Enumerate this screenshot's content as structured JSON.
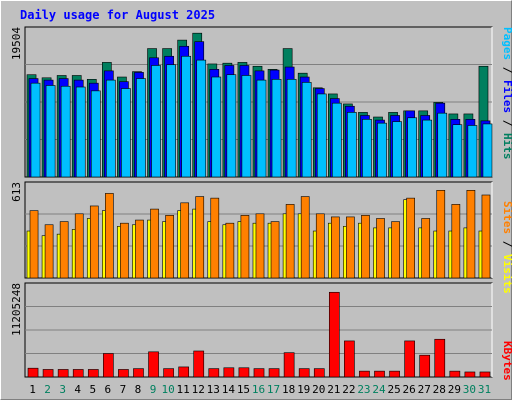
{
  "chart_data": [
    {
      "type": "bar",
      "title": "Daily usage for August 2025",
      "panel": "hits-files-pages",
      "ymax_label": "19504",
      "ylim": [
        0,
        19504
      ],
      "categories": [
        "1",
        "2",
        "3",
        "4",
        "5",
        "6",
        "7",
        "8",
        "9",
        "10",
        "11",
        "12",
        "13",
        "14",
        "15",
        "16",
        "17",
        "18",
        "19",
        "20",
        "21",
        "22",
        "23",
        "24",
        "25",
        "26",
        "27",
        "28",
        "29",
        "30",
        "31"
      ],
      "weekend_days": [
        "2",
        "3",
        "9",
        "10",
        "16",
        "17",
        "23",
        "24",
        "30",
        "31"
      ],
      "series": [
        {
          "name": "Hits",
          "color": "#007f5f",
          "values": [
            13300,
            12900,
            13200,
            13200,
            12700,
            14900,
            13000,
            13700,
            16700,
            16700,
            17800,
            18700,
            14700,
            14800,
            14900,
            14400,
            14000,
            16700,
            13500,
            11600,
            10800,
            9500,
            8400,
            7800,
            8400,
            8600,
            8600,
            9700,
            8200,
            8200,
            14400
          ]
        },
        {
          "name": "Files",
          "color": "#0000ff",
          "values": [
            12800,
            12600,
            12800,
            12600,
            12200,
            13800,
            12400,
            13600,
            15500,
            15700,
            17000,
            17600,
            14000,
            14500,
            14500,
            13800,
            13900,
            14300,
            13000,
            11500,
            10200,
            9200,
            8000,
            7400,
            8000,
            8600,
            8000,
            9600,
            7500,
            7500,
            7300
          ]
        },
        {
          "name": "Pages",
          "color": "#00bfff",
          "values": [
            12200,
            11900,
            11800,
            11700,
            11200,
            12600,
            11500,
            12800,
            14500,
            14600,
            15700,
            15200,
            13000,
            13300,
            13200,
            12600,
            12700,
            12700,
            12300,
            10800,
            9600,
            8400,
            7500,
            7000,
            7200,
            7700,
            7400,
            8300,
            6800,
            6700,
            6900
          ]
        }
      ],
      "right_labels": [
        "Pages",
        "Files",
        "Hits"
      ]
    },
    {
      "type": "bar",
      "panel": "visits-sites",
      "ymax_label": "613",
      "ylim": [
        0,
        613
      ],
      "categories": [
        "1",
        "2",
        "3",
        "4",
        "5",
        "6",
        "7",
        "8",
        "9",
        "10",
        "11",
        "12",
        "13",
        "14",
        "15",
        "16",
        "17",
        "18",
        "19",
        "20",
        "21",
        "22",
        "23",
        "24",
        "25",
        "26",
        "27",
        "28",
        "29",
        "30",
        "31"
      ],
      "series": [
        {
          "name": "Visits",
          "color": "#ffff00",
          "values": [
            300,
            270,
            280,
            310,
            380,
            430,
            330,
            340,
            370,
            360,
            430,
            440,
            360,
            340,
            360,
            350,
            350,
            410,
            410,
            300,
            350,
            330,
            350,
            320,
            320,
            500,
            320,
            300,
            300,
            320,
            300
          ]
        },
        {
          "name": "Sites",
          "color": "#ff8000",
          "values": [
            430,
            340,
            360,
            410,
            460,
            540,
            350,
            370,
            440,
            400,
            480,
            520,
            510,
            350,
            400,
            410,
            360,
            470,
            520,
            410,
            390,
            390,
            400,
            380,
            360,
            510,
            380,
            560,
            470,
            560,
            530
          ]
        }
      ],
      "right_labels": [
        "Sites",
        "Visits"
      ]
    },
    {
      "type": "bar",
      "panel": "kbytes",
      "ymax_label": "11205248",
      "ylim": [
        0,
        11205248
      ],
      "categories": [
        "1",
        "2",
        "3",
        "4",
        "5",
        "6",
        "7",
        "8",
        "9",
        "10",
        "11",
        "12",
        "13",
        "14",
        "15",
        "16",
        "17",
        "18",
        "19",
        "20",
        "21",
        "22",
        "23",
        "24",
        "25",
        "26",
        "27",
        "28",
        "29",
        "30",
        "31"
      ],
      "series": [
        {
          "name": "KBytes",
          "color": "#ff0000",
          "values": [
            1050000,
            900000,
            900000,
            900000,
            900000,
            2800000,
            900000,
            1000000,
            3000000,
            1000000,
            1200000,
            3100000,
            1000000,
            1100000,
            1100000,
            1000000,
            1000000,
            2900000,
            1000000,
            1000000,
            10100000,
            4300000,
            700000,
            700000,
            700000,
            4300000,
            2600000,
            4500000,
            700000,
            600000,
            600000
          ]
        }
      ],
      "right_labels": [
        "KBytes"
      ]
    }
  ],
  "palette": {
    "background": "#c0c0c0",
    "plot_bg": "#c0c0c0",
    "grid": "#808080",
    "weekday_label": "#000000",
    "weekend_label": "#00805f",
    "title": "#0000ff",
    "slash": "#000000"
  }
}
